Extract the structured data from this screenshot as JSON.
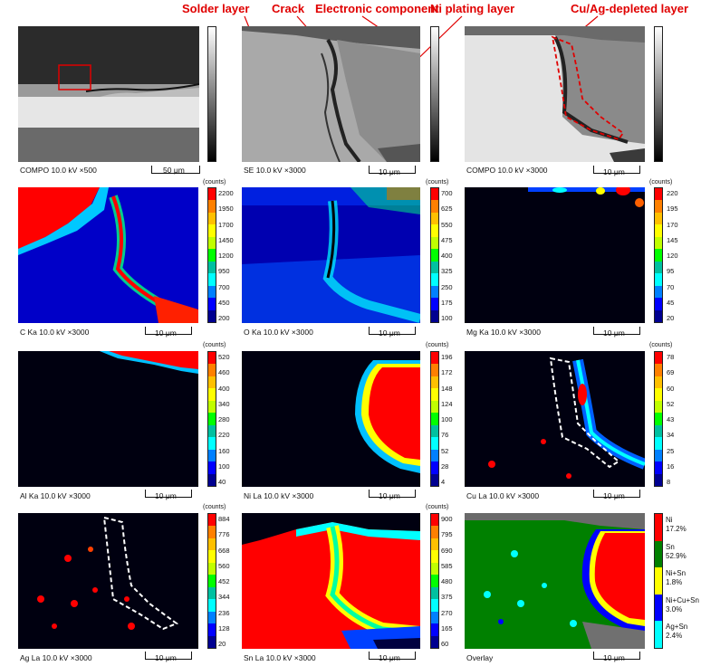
{
  "top_labels": {
    "solder": "Solder layer",
    "crack": "Crack",
    "component": "Electronic component",
    "ni_plating": "Ni plating layer",
    "depleted": "Cu/Ag-depleted layer"
  },
  "units": "(counts)",
  "panels": {
    "compo500": {
      "caption": "COMPO 10.0 kV ×500",
      "scale": "50 μm"
    },
    "se3000": {
      "caption": "SE 10.0 kV ×3000",
      "scale": "10 μm"
    },
    "compo3000": {
      "caption": "COMPO 10.0 kV ×3000",
      "scale": "10 μm"
    },
    "c": {
      "caption": "C Ka 10.0 kV ×3000",
      "scale": "10 μm",
      "ticks": [
        "2200",
        "1950",
        "1700",
        "1450",
        "1200",
        "950",
        "700",
        "450",
        "200"
      ]
    },
    "o": {
      "caption": "O Ka 10.0 kV ×3000",
      "scale": "10 μm",
      "ticks": [
        "700",
        "625",
        "550",
        "475",
        "400",
        "325",
        "250",
        "175",
        "100"
      ]
    },
    "mg": {
      "caption": "Mg Ka 10.0 kV ×3000",
      "scale": "10 μm",
      "ticks": [
        "220",
        "195",
        "170",
        "145",
        "120",
        "95",
        "70",
        "45",
        "20"
      ]
    },
    "al": {
      "caption": "Al Ka 10.0 kV ×3000",
      "scale": "10 μm",
      "ticks": [
        "520",
        "460",
        "400",
        "340",
        "280",
        "220",
        "160",
        "100",
        "40"
      ]
    },
    "ni": {
      "caption": "Ni La 10.0 kV ×3000",
      "scale": "10 μm",
      "ticks": [
        "196",
        "172",
        "148",
        "124",
        "100",
        "76",
        "52",
        "28",
        "4"
      ]
    },
    "cu": {
      "caption": "Cu La 10.0 kV ×3000",
      "scale": "10 μm",
      "ticks": [
        "78",
        "69",
        "60",
        "52",
        "43",
        "34",
        "25",
        "16",
        "8"
      ]
    },
    "ag": {
      "caption": "Ag La 10.0 kV ×3000",
      "scale": "10 μm",
      "ticks": [
        "884",
        "776",
        "668",
        "560",
        "452",
        "344",
        "236",
        "128",
        "20"
      ]
    },
    "sn": {
      "caption": "Sn La 10.0 kV ×3000",
      "scale": "10 μm",
      "ticks": [
        "900",
        "795",
        "690",
        "585",
        "480",
        "375",
        "270",
        "165",
        "60"
      ]
    },
    "overlay": {
      "caption": "Overlay",
      "scale": "10 μm"
    }
  },
  "overlay_legend": [
    {
      "name": "Ni",
      "pct": "17.2%",
      "color": "#ff0000"
    },
    {
      "name": "Sn",
      "pct": "52.9%",
      "color": "#008000"
    },
    {
      "name": "Ni+Sn",
      "pct": "1.8%",
      "color": "#ffff00"
    },
    {
      "name": "Ni+Cu+Sn",
      "pct": "3.0%",
      "color": "#0000ff"
    },
    {
      "name": "Ag+Sn",
      "pct": "2.4%",
      "color": "#00ffff"
    }
  ],
  "colors": {
    "map_palette": [
      "#ff0000",
      "#ff8000",
      "#ffc000",
      "#ffff00",
      "#c0ff00",
      "#00ff00",
      "#00c0a0",
      "#00ffff",
      "#0080ff",
      "#0000ff",
      "#000090"
    ],
    "annotation": "#e00000"
  }
}
